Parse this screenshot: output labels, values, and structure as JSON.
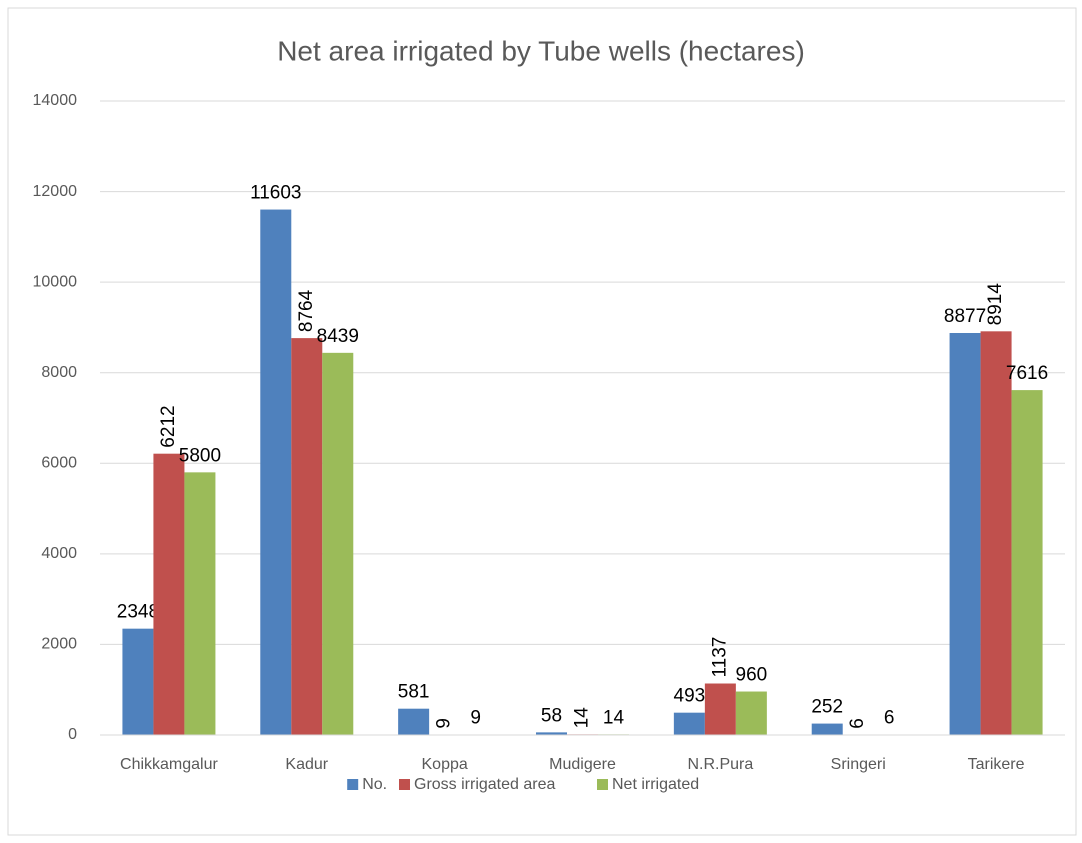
{
  "chart_data": {
    "type": "bar",
    "title": "Net area irrigated by Tube wells (hectares)",
    "categories": [
      "Chikkamgalur",
      "Kadur",
      "Koppa",
      "Mudigere",
      "N.R.Pura",
      "Sringeri",
      "Tarikere"
    ],
    "series": [
      {
        "name": "No.",
        "color": "#4f81bd",
        "values": [
          2348,
          11603,
          581,
          58,
          493,
          252,
          8877
        ]
      },
      {
        "name": "Gross irrigated area",
        "color": "#c0504d",
        "values": [
          6212,
          8764,
          9,
          14,
          1137,
          6,
          8914
        ]
      },
      {
        "name": "Net irrigated",
        "color": "#9bbb59",
        "values": [
          5800,
          8439,
          9,
          14,
          960,
          6,
          7616
        ]
      }
    ],
    "ylim": [
      0,
      14000
    ],
    "yticks": [
      0,
      2000,
      4000,
      6000,
      8000,
      10000,
      12000,
      14000
    ],
    "grid": true,
    "legend": "bottom"
  }
}
